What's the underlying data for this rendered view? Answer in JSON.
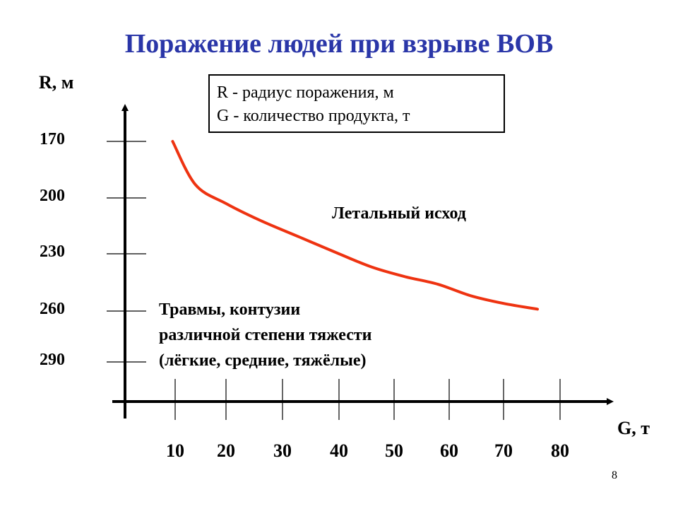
{
  "slide": {
    "title": "Поражение людей при взрыве ВОВ",
    "page_number": "8"
  },
  "legend": {
    "line1": "R - радиус поражения, м",
    "line2": "G - количество продукта, т"
  },
  "colors": {
    "title": "#2a36a8",
    "curve": "#ee3311",
    "axis": "#000000"
  },
  "chart_data": {
    "type": "line",
    "title": "Поражение людей при взрыве ВОВ",
    "xlabel": "G, т",
    "ylabel": "R, м",
    "x_ticks": [
      10,
      20,
      30,
      40,
      50,
      60,
      70,
      80
    ],
    "y_ticks": [
      170,
      200,
      230,
      260,
      290
    ],
    "y_inverted": true,
    "grid": false,
    "series": [
      {
        "x": [
          9.5,
          14,
          20,
          26,
          33,
          40,
          46,
          52,
          58,
          64,
          70,
          76
        ],
        "y": [
          170,
          193,
          203,
          212,
          221,
          230,
          237,
          242,
          246,
          252,
          256,
          259
        ]
      }
    ],
    "annotations": [
      {
        "text": "Летальный исход"
      },
      {
        "lines": [
          "Травмы, контузии",
          "различной степени тяжести",
          "(лёгкие, средние, тяжёлые)"
        ]
      }
    ]
  }
}
